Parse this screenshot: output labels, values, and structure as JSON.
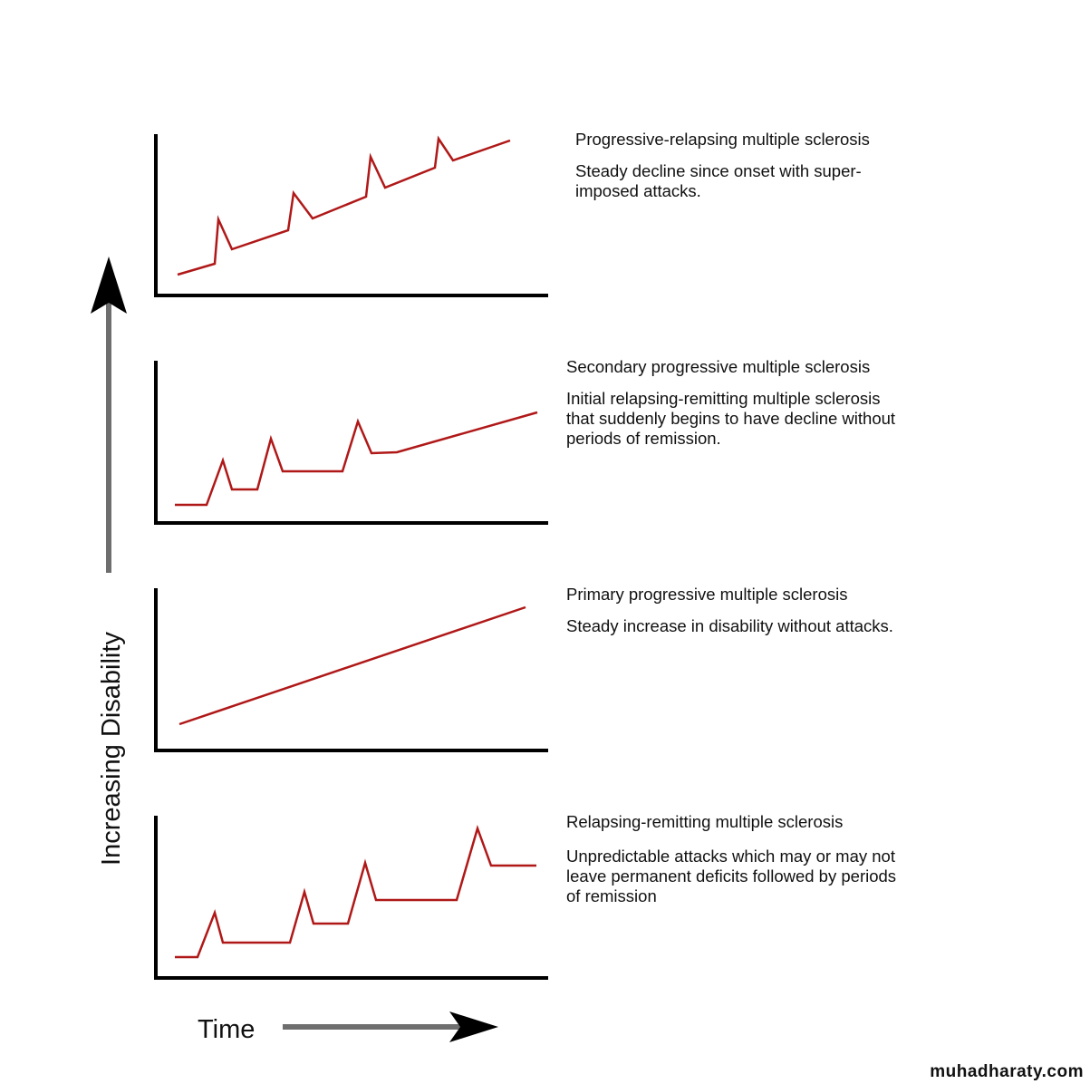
{
  "y_axis_label": "Increasing Disability",
  "x_axis_label": "Time",
  "watermark": "muhadharaty.com",
  "panels": [
    {
      "title": "Progressive-relapsing multiple sclerosis",
      "description": [
        "Steady decline since onset with super-",
        "imposed attacks."
      ]
    },
    {
      "title": "Secondary progressive multiple sclerosis",
      "description": [
        "Initial relapsing-remitting multiple sclerosis",
        "that suddenly begins to have decline without",
        "periods of remission."
      ]
    },
    {
      "title": "Primary progressive multiple sclerosis",
      "description": [
        "Steady increase in disability without attacks."
      ]
    },
    {
      "title": "Relapsing-remitting multiple sclerosis",
      "description": [
        "Unpredictable attacks which may or may not",
        "leave permanent deficits followed by periods",
        "of remission"
      ]
    }
  ]
}
